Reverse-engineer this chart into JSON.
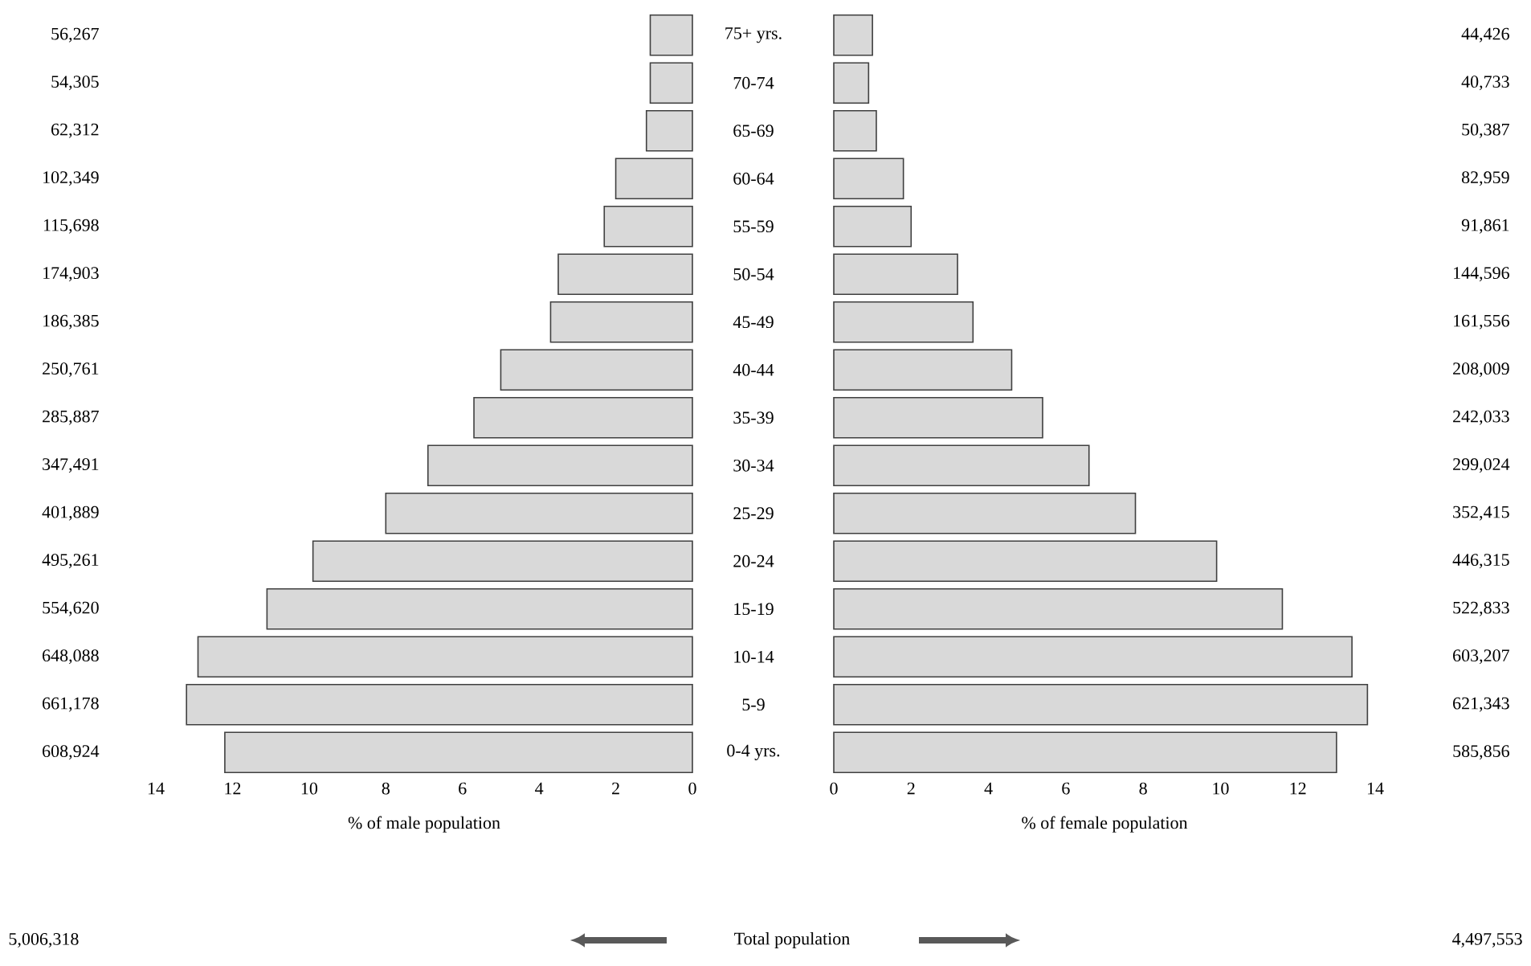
{
  "chart_data": [
    {
      "type": "bar",
      "orientation": "horizontal",
      "color": "#d9d9d9",
      "categories": [
        "75+ yrs.",
        "70-74",
        "65-69",
        "60-64",
        "55-59",
        "50-54",
        "45-49",
        "40-44",
        "35-39",
        "30-34",
        "25-29",
        "20-24",
        "15-19",
        "10-14",
        "5-9",
        "0-4 yrs."
      ],
      "values": [
        1.1,
        1.1,
        1.2,
        2.0,
        2.3,
        3.5,
        3.7,
        5.0,
        5.7,
        6.9,
        8.0,
        9.9,
        11.1,
        12.9,
        13.2,
        12.2
      ],
      "xlim": [
        14,
        0
      ],
      "xticks": [
        0,
        2,
        4,
        6,
        8,
        10,
        12,
        14
      ],
      "xlabel": "% of male population",
      "annotations": [
        "56,267",
        "54,305",
        "62,312",
        "102,349",
        "115,698",
        "174,903",
        "186,385",
        "250,761",
        "285,887",
        "347,491",
        "401,889",
        "495,261",
        "554,620",
        "648,088",
        "661,178",
        "608,924",
        "5,006,318",
        "Total population"
      ]
    },
    {
      "type": "bar",
      "orientation": "horizontal",
      "color": "#d9d9d9",
      "categories": [
        null,
        null,
        null,
        null,
        null,
        null,
        null,
        null,
        null,
        null,
        null,
        null,
        null,
        null,
        null,
        null
      ],
      "values": [
        1.0,
        0.9,
        1.1,
        1.8,
        2.0,
        3.2,
        3.6,
        4.6,
        5.4,
        6.6,
        7.8,
        9.9,
        11.6,
        13.4,
        13.8,
        13.0
      ],
      "xlim": [
        0,
        14
      ],
      "xticks": [
        0,
        2,
        4,
        6,
        8,
        10,
        12,
        14
      ],
      "xlabel": "% of female population",
      "annotations": [
        "44,426",
        "40,733",
        "50,387",
        "82,959",
        "91,861",
        "144,596",
        "161,556",
        "208,009",
        "242,033",
        "299,024",
        "352,415",
        "446,315",
        "522,833",
        "603,207",
        "621,343",
        "585,856",
        "4,497,553"
      ]
    }
  ]
}
